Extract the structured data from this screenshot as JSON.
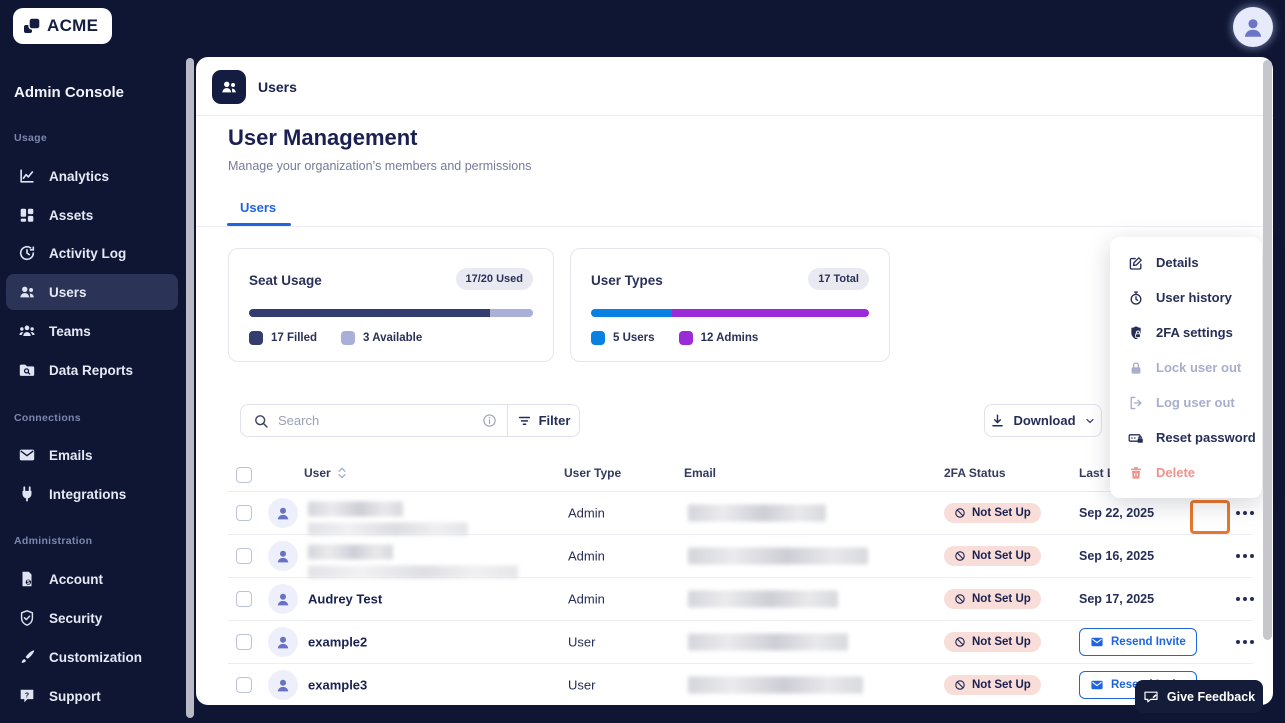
{
  "topbar": {
    "logo_text": "ACME"
  },
  "sidebar": {
    "title": "Admin Console",
    "sections": [
      {
        "label": "Usage",
        "items": [
          {
            "label": "Analytics",
            "icon": "analytics-icon",
            "active": false
          },
          {
            "label": "Assets",
            "icon": "assets-icon",
            "active": false
          },
          {
            "label": "Activity Log",
            "icon": "activity-log-icon",
            "active": false
          },
          {
            "label": "Users",
            "icon": "users-icon",
            "active": true
          },
          {
            "label": "Teams",
            "icon": "teams-icon",
            "active": false
          },
          {
            "label": "Data Reports",
            "icon": "data-reports-icon",
            "active": false
          }
        ]
      },
      {
        "label": "Connections",
        "items": [
          {
            "label": "Emails",
            "icon": "emails-icon",
            "active": false
          },
          {
            "label": "Integrations",
            "icon": "integrations-icon",
            "active": false
          }
        ]
      },
      {
        "label": "Administration",
        "items": [
          {
            "label": "Account",
            "icon": "account-icon",
            "active": false
          },
          {
            "label": "Security",
            "icon": "security-icon",
            "active": false
          },
          {
            "label": "Customization",
            "icon": "customization-icon",
            "active": false
          },
          {
            "label": "Support",
            "icon": "support-icon",
            "active": false
          }
        ]
      }
    ]
  },
  "panel_header": {
    "title": "Users"
  },
  "page": {
    "title": "User Management",
    "subtitle": "Manage your organization’s members and permissions",
    "tabs": [
      {
        "label": "Users",
        "active": true
      }
    ]
  },
  "summary_cards": [
    {
      "title": "Seat Usage",
      "badge": "17/20 Used",
      "segments": [
        {
          "label": "17 Filled",
          "color": "#333D6E",
          "width": "85%"
        },
        {
          "label": "3 Available",
          "color": "#A9AFD6",
          "width": "15%"
        }
      ]
    },
    {
      "title": "User Types",
      "badge": "17 Total",
      "segments": [
        {
          "label": "5 Users",
          "color": "#0881E2",
          "width": "29%"
        },
        {
          "label": "12 Admins",
          "color": "#9B2BD6",
          "width": "71%"
        }
      ]
    }
  ],
  "toolbar": {
    "search_placeholder": "Search",
    "filter_label": "Filter",
    "download_label": "Download"
  },
  "table": {
    "columns": {
      "user": "User",
      "user_type": "User Type",
      "email": "Email",
      "twofa_status": "2FA Status",
      "last_login": "Last Login"
    },
    "rows": [
      {
        "name": "",
        "name_redacted": true,
        "user_type": "Admin",
        "email_redacted": true,
        "twofa_status": "Not Set Up",
        "last_login": "Sep 22, 2025",
        "menu_open": true
      },
      {
        "name": "",
        "name_redacted": true,
        "user_type": "Admin",
        "email_redacted": true,
        "twofa_status": "Not Set Up",
        "last_login": "Sep 16, 2025"
      },
      {
        "name": "Audrey Test",
        "name_redacted": false,
        "user_type": "Admin",
        "email_redacted": true,
        "twofa_status": "Not Set Up",
        "last_login": "Sep 17, 2025"
      },
      {
        "name": "example2",
        "name_redacted": false,
        "user_type": "User",
        "email_redacted": true,
        "twofa_status": "Not Set Up",
        "invite_label": "Resend Invite"
      },
      {
        "name": "example3",
        "name_redacted": false,
        "user_type": "User",
        "email_redacted": true,
        "twofa_status": "Not Set Up",
        "invite_label": "Resend Invite"
      }
    ]
  },
  "context_menu": {
    "items": [
      {
        "label": "Details",
        "icon": "edit-icon",
        "state": "enabled"
      },
      {
        "label": "User history",
        "icon": "history-icon",
        "state": "enabled"
      },
      {
        "label": "2FA settings",
        "icon": "twofa-shield-icon",
        "state": "enabled"
      },
      {
        "label": "Lock user out",
        "icon": "lock-icon",
        "state": "disabled"
      },
      {
        "label": "Log user out",
        "icon": "logout-icon",
        "state": "disabled"
      },
      {
        "label": "Reset password",
        "icon": "password-icon",
        "state": "enabled"
      },
      {
        "label": "Delete",
        "icon": "trash-icon",
        "state": "danger"
      }
    ]
  },
  "feedback": {
    "label": "Give Feedback"
  },
  "colors": {
    "accent_blue": "#2065E0",
    "navy_background": "#0E1633",
    "orange_highlight": "#E8772E",
    "badge_pink": "#F8DDD9"
  }
}
